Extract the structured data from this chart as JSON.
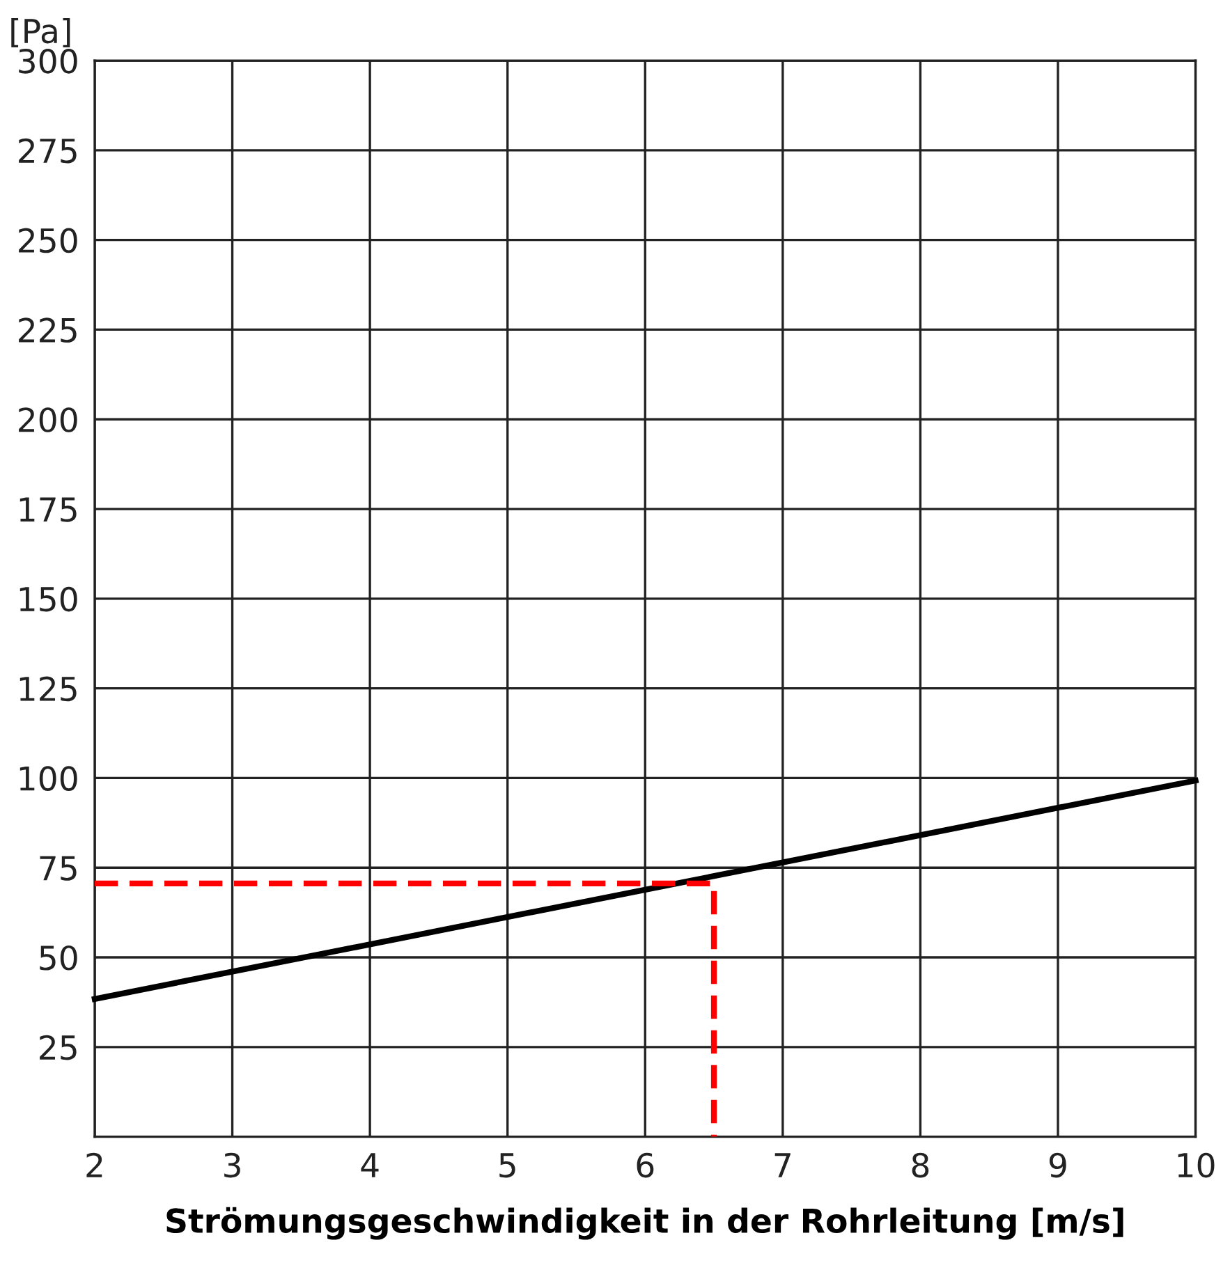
{
  "chart_data": {
    "type": "line",
    "xlabel": "Strömungsgeschwindigkeit in der Rohrleitung [m/s]",
    "ylabel": "[Pa]",
    "xlim": [
      2,
      10
    ],
    "ylim": [
      0,
      300
    ],
    "xticks": [
      2,
      3,
      4,
      5,
      6,
      7,
      8,
      9,
      10
    ],
    "yticks": [
      {
        "value": 0,
        "label": null
      },
      25,
      50,
      75,
      100,
      125,
      150,
      175,
      200,
      225,
      250,
      275,
      300
    ],
    "grid": true,
    "legend": false,
    "series": [
      {
        "x": [
          2,
          10
        ],
        "values": [
          38.4,
          99.3
        ],
        "color": "#000000",
        "line_style": "solid"
      },
      {
        "x": [
          2,
          6.5,
          6.5
        ],
        "values": [
          70.6,
          70.6,
          0
        ],
        "color": "#ff0000",
        "line_style": "dashed"
      }
    ]
  }
}
